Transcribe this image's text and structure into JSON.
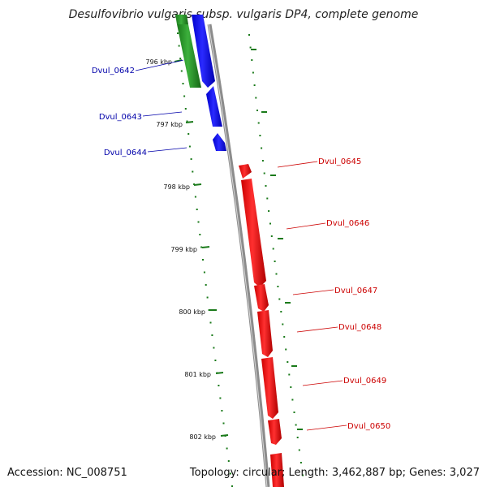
{
  "title": "Desulfovibrio vulgaris subsp. vulgaris DP4, complete genome",
  "accession": "Accession: NC_008751",
  "summary": "Topology: circular; Length: 3,462,887 bp; Genes: 3,027",
  "colors": {
    "backbone": "#8c8c8c",
    "forward_gene": "#ff0000",
    "reverse_gene": "#0000ff",
    "rna_track": "#1a8a1a",
    "fwd_label": "#cc0000",
    "rev_label": "#0000aa",
    "tick": "#1a7a1a"
  },
  "ticks": [
    "796 kbp",
    "797 kbp",
    "798 kbp",
    "799 kbp",
    "800 kbp",
    "801 kbp",
    "802 kbp"
  ],
  "genes_reverse": [
    {
      "label": "Dvul_0642"
    },
    {
      "label": "Dvul_0643"
    },
    {
      "label": "Dvul_0644"
    }
  ],
  "genes_forward": [
    {
      "label": "Dvul_0645"
    },
    {
      "label": "Dvul_0646"
    },
    {
      "label": "Dvul_0647"
    },
    {
      "label": "Dvul_0648"
    },
    {
      "label": "Dvul_0649"
    },
    {
      "label": "Dvul_0650"
    }
  ]
}
